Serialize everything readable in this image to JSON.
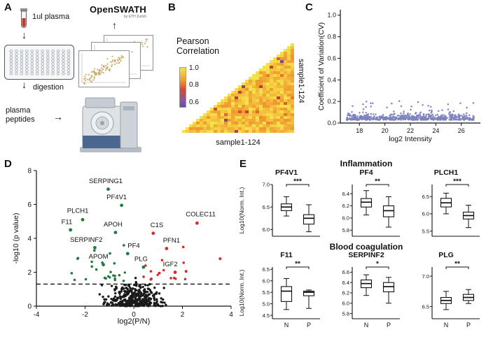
{
  "panels": {
    "a": {
      "label": "A",
      "plasma": "1ul plasma",
      "digestion": "digestion",
      "peptides": "plasma peptides",
      "openswath": "OpenSWATH",
      "openswath_sub": "by ETH Zurich"
    },
    "b": {
      "label": "B",
      "title": "Pearson Correlation",
      "colorbar_ticks": [
        "1.0",
        "0.8",
        "0.6"
      ],
      "x_label": "sample1-124",
      "y_label": "sample1-124"
    },
    "c": {
      "label": "C"
    },
    "d": {
      "label": "D"
    },
    "e": {
      "label": "E"
    }
  },
  "icons": {
    "arrow_down": "↓",
    "arrow_right": "→",
    "arrow_up": "↑"
  },
  "chart_data": [
    {
      "id": "pearson_heatmap",
      "type": "heatmap",
      "title": "Pearson Correlation",
      "x_axis_label": "sample1-124",
      "y_axis_label": "sample1-124",
      "n_samples": 124,
      "value_range": [
        0.55,
        1.0
      ],
      "colorbar_ticks": [
        1.0,
        0.8,
        0.6
      ],
      "pattern": "upper-triangle correlation matrix, mostly 0.85-1.0 (orange/yellow) with sparse low-value purple specks, diagonal = 1.0"
    },
    {
      "id": "cv_scatter",
      "type": "scatter",
      "xlabel": "log2 Intensity",
      "ylabel": "Coefficient of Variation(CV)",
      "xlim": [
        16.5,
        27.5
      ],
      "ylim": [
        0,
        1.05
      ],
      "xticks": [
        18,
        20,
        22,
        24,
        26
      ],
      "yticks": [
        0,
        0.2,
        0.4,
        0.6,
        0.8,
        1
      ],
      "point_color": "#7d82bd",
      "n_points": 620,
      "summary": {
        "x_range": [
          17,
          27
        ],
        "cv_median": 0.05,
        "cv_bulk_max": 0.15
      }
    },
    {
      "id": "volcano",
      "type": "scatter",
      "xlabel": "log2(P/N)",
      "ylabel": "-log10 (p value)",
      "xlim": [
        -4,
        4
      ],
      "ylim": [
        0,
        8
      ],
      "xticks": [
        -4,
        -2,
        0,
        2,
        4
      ],
      "yticks": [
        0,
        2,
        4,
        6,
        8
      ],
      "threshold_y": 1.3,
      "colors": {
        "down": "#1e7d3d",
        "up": "#d42b2b",
        "ns": "#1a1a1a"
      },
      "n_background_points": 370,
      "labeled_points": [
        {
          "name": "SERPING1",
          "x": -1.05,
          "y": 6.9,
          "direction": "down",
          "label_x": -1.15,
          "label_y": 7.25
        },
        {
          "name": "PF4V1",
          "x": -0.5,
          "y": 5.95,
          "direction": "down",
          "label_x": -0.7,
          "label_y": 6.3
        },
        {
          "name": "PLCH1",
          "x": -2.1,
          "y": 5.1,
          "direction": "down",
          "label_x": -2.3,
          "label_y": 5.5
        },
        {
          "name": "F11",
          "x": -2.6,
          "y": 4.5,
          "direction": "down",
          "label_x": -2.75,
          "label_y": 4.85
        },
        {
          "name": "APOH",
          "x": -0.75,
          "y": 4.35,
          "direction": "down",
          "label_x": -0.85,
          "label_y": 4.7
        },
        {
          "name": "C1S",
          "x": 0.8,
          "y": 4.3,
          "direction": "up",
          "label_x": 0.95,
          "label_y": 4.65
        },
        {
          "name": "COLEC11",
          "x": 2.6,
          "y": 4.9,
          "direction": "up",
          "label_x": 2.75,
          "label_y": 5.3
        },
        {
          "name": "SERPINF2",
          "x": -1.6,
          "y": 3.45,
          "direction": "down",
          "label_x": -1.95,
          "label_y": 3.8
        },
        {
          "name": "PF4",
          "x": -0.25,
          "y": 3.1,
          "direction": "down",
          "label_x": 0.0,
          "label_y": 3.45
        },
        {
          "name": "PFN1",
          "x": 1.35,
          "y": 3.4,
          "direction": "up",
          "label_x": 1.55,
          "label_y": 3.75
        },
        {
          "name": "APOM",
          "x": -1.25,
          "y": 2.45,
          "direction": "down",
          "label_x": -1.45,
          "label_y": 2.8
        },
        {
          "name": "PLG",
          "x": 0.4,
          "y": 2.3,
          "direction": "down",
          "label_x": 0.3,
          "label_y": 2.65
        },
        {
          "name": "IGF2",
          "x": 1.7,
          "y": 2.0,
          "direction": "up",
          "label_x": 1.5,
          "label_y": 2.35
        }
      ]
    },
    {
      "id": "abundance_boxplots",
      "type": "box",
      "ylabel": "Log10(Norm. Int.)",
      "categories": [
        "N",
        "P"
      ],
      "sections": [
        {
          "title": "Inflammation",
          "show_x_labels": false,
          "plots": [
            {
              "gene": "PF4V1",
              "significance": "***",
              "yticks": [
                6.0,
                6.5,
                7.0
              ],
              "ylim": [
                5.85,
                7.0
              ],
              "N": {
                "lo": 6.3,
                "q1": 6.42,
                "med": 6.5,
                "q3": 6.57,
                "hi": 6.73
              },
              "P": {
                "lo": 5.95,
                "q1": 6.12,
                "med": 6.25,
                "q3": 6.33,
                "hi": 6.55
              }
            },
            {
              "gene": "PF4",
              "significance": "**",
              "yticks": [
                5.8,
                6.0,
                6.2,
                6.4
              ],
              "ylim": [
                5.7,
                6.55
              ],
              "N": {
                "lo": 6.05,
                "q1": 6.18,
                "med": 6.26,
                "q3": 6.32,
                "hi": 6.45
              },
              "P": {
                "lo": 5.85,
                "q1": 6.02,
                "med": 6.12,
                "q3": 6.2,
                "hi": 6.35
              }
            },
            {
              "gene": "PLCH1",
              "significance": "***",
              "yticks": [
                5.5,
                6.0,
                6.5
              ],
              "ylim": [
                5.35,
                6.85
              ],
              "N": {
                "lo": 6.0,
                "q1": 6.2,
                "med": 6.32,
                "q3": 6.45,
                "hi": 6.6
              },
              "P": {
                "lo": 5.6,
                "q1": 5.85,
                "med": 5.95,
                "q3": 6.05,
                "hi": 6.25
              }
            }
          ]
        },
        {
          "title": "Blood coagulation",
          "show_x_labels": true,
          "plots": [
            {
              "gene": "F11",
              "significance": "**",
              "yticks": [
                4.5,
                5.0,
                5.5,
                6.0,
                6.5
              ],
              "ylim": [
                4.35,
                6.6
              ],
              "N": {
                "lo": 4.75,
                "q1": 5.1,
                "med": 5.55,
                "q3": 5.75,
                "hi": 6.1
              },
              "P": {
                "lo": 4.8,
                "q1": 5.35,
                "med": 5.5,
                "q3": 5.55,
                "hi": 5.6
              }
            },
            {
              "gene": "SERPINF2",
              "significance": "*",
              "yticks": [
                5.8,
                6.0,
                6.2,
                6.4,
                6.6
              ],
              "ylim": [
                5.7,
                6.7
              ],
              "N": {
                "lo": 6.15,
                "q1": 6.3,
                "med": 6.38,
                "q3": 6.45,
                "hi": 6.55
              },
              "P": {
                "lo": 6.0,
                "q1": 6.22,
                "med": 6.32,
                "q3": 6.4,
                "hi": 6.5
              }
            },
            {
              "gene": "PLG",
              "significance": "**",
              "yticks": [
                6.5,
                7.0
              ],
              "ylim": [
                6.3,
                7.15
              ],
              "N": {
                "lo": 6.45,
                "q1": 6.55,
                "med": 6.6,
                "q3": 6.65,
                "hi": 6.75
              },
              "P": {
                "lo": 6.55,
                "q1": 6.6,
                "med": 6.65,
                "q3": 6.7,
                "hi": 6.78
              }
            }
          ]
        }
      ]
    }
  ]
}
